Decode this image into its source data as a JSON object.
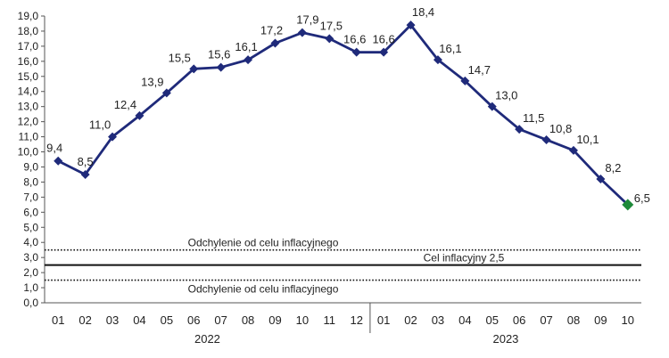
{
  "chart_data": {
    "type": "line",
    "title": "",
    "xlabel": "",
    "ylabel": "",
    "ylim": [
      0,
      19
    ],
    "ytick_labels": [
      "0,0",
      "1,0",
      "2,0",
      "3,0",
      "4,0",
      "5,0",
      "6,0",
      "7,0",
      "8,0",
      "9,0",
      "10,0",
      "11,0",
      "12,0",
      "13,0",
      "14,0",
      "15,0",
      "16,0",
      "17,0",
      "18,0",
      "19,0"
    ],
    "categories": [
      "01",
      "02",
      "03",
      "04",
      "05",
      "06",
      "07",
      "08",
      "09",
      "10",
      "11",
      "12",
      "01",
      "02",
      "03",
      "04",
      "05",
      "06",
      "07",
      "08",
      "09",
      "10"
    ],
    "years": [
      {
        "label": "2022",
        "from": 0,
        "to": 11
      },
      {
        "label": "2023",
        "from": 12,
        "to": 21
      }
    ],
    "series": [
      {
        "values": [
          9.4,
          8.5,
          11.0,
          12.4,
          13.9,
          15.5,
          15.6,
          16.1,
          17.2,
          17.9,
          17.5,
          16.6,
          16.6,
          18.4,
          16.1,
          14.7,
          13.0,
          11.5,
          10.8,
          10.1,
          8.2,
          6.5
        ],
        "labels": [
          "9,4",
          "8,5",
          "11,0",
          "12,4",
          "13,9",
          "15,5",
          "15,6",
          "16,1",
          "17,2",
          "17,9",
          "17,5",
          "16,6",
          "16,6",
          "18,4",
          "16,1",
          "14,7",
          "13,0",
          "11,5",
          "10,8",
          "10,1",
          "8,2",
          "6,5"
        ],
        "color": "#1f2a7a",
        "highlight_last_color": "#1e8a3a"
      }
    ],
    "reference_lines": [
      {
        "value": 3.5,
        "style": "dotted",
        "label": "Odchylenie od celu inflacyjnego",
        "label_pos": "above"
      },
      {
        "value": 2.5,
        "style": "solid",
        "label": "Cel inflacyjny 2,5",
        "label_pos": "above"
      },
      {
        "value": 1.5,
        "style": "dotted",
        "label": "Odchylenie od celu inflacyjnego",
        "label_pos": "below"
      }
    ],
    "grid": false,
    "legend": "none"
  }
}
